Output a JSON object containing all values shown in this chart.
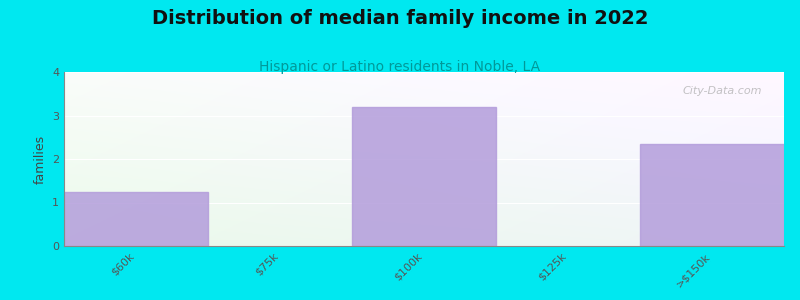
{
  "title": "Distribution of median family income in 2022",
  "subtitle": "Hispanic or Latino residents in Noble, LA",
  "ylabel": "families",
  "bar_values": [
    1.25,
    0,
    3.2,
    0,
    2.35
  ],
  "xtick_labels": [
    "$60k",
    "$75k",
    "$100k",
    "$125k",
    ">$150k"
  ],
  "ylim": [
    0,
    4
  ],
  "yticks": [
    0,
    1,
    2,
    3,
    4
  ],
  "bar_color": "#b39ddb",
  "bar_alpha": 0.85,
  "bg_color": "#00e8f0",
  "watermark": "City-Data.com",
  "title_fontsize": 14,
  "subtitle_fontsize": 10,
  "ylabel_fontsize": 9,
  "tick_fontsize": 8
}
